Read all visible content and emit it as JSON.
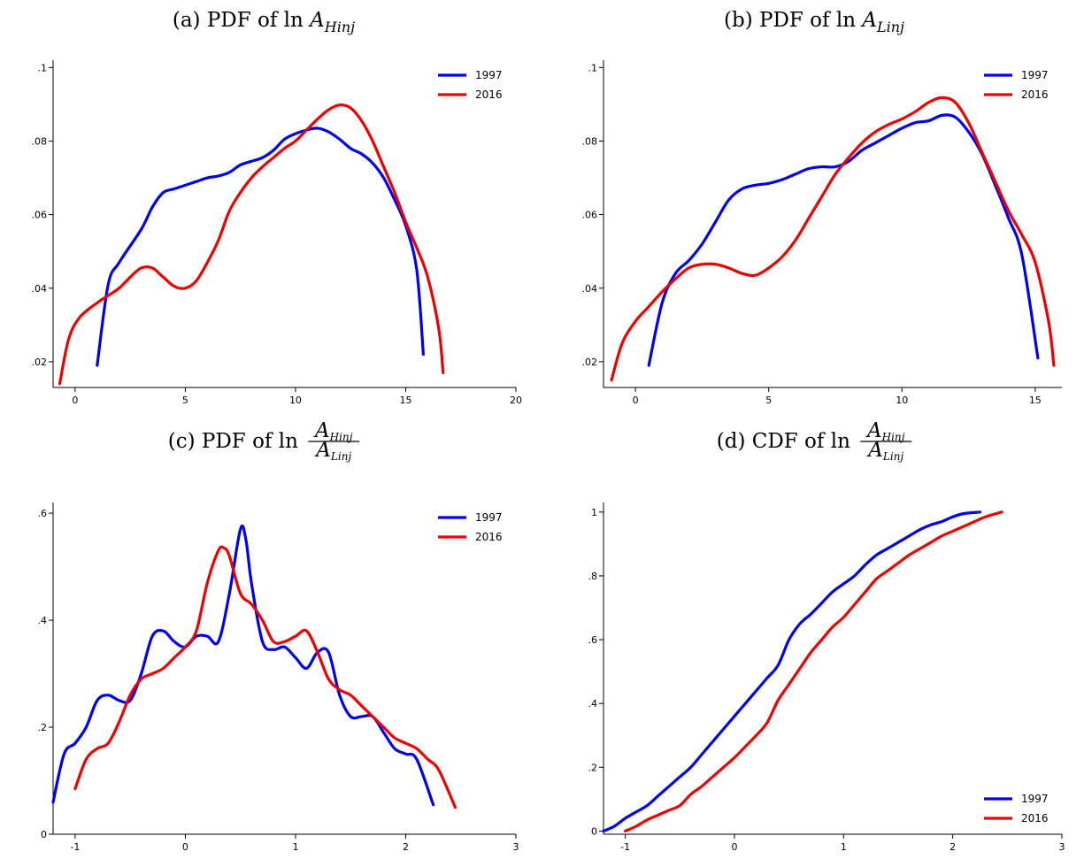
{
  "figure": {
    "panels": [
      {
        "title_prefix": "(a) PDF of ln ",
        "title_var": "A",
        "title_sub": "Hinj"
      },
      {
        "title_prefix": "(b) PDF of ln ",
        "title_var": "A",
        "title_sub": "Linj"
      },
      {
        "title_prefix": "(c) PDF of ln ",
        "title_num": "A",
        "title_num_sub": "Hinj",
        "title_den": "A",
        "title_den_sub": "Linj"
      },
      {
        "title_prefix": "(d) CDF of ln ",
        "title_num": "A",
        "title_num_sub": "Hinj",
        "title_den": "A",
        "title_den_sub": "Linj"
      }
    ]
  },
  "colors": {
    "series_1997": "#0000ee",
    "series_2016": "#ee0000",
    "axis": "#000000"
  },
  "chart_data": [
    {
      "type": "line",
      "title": "(a) PDF of ln A_Hinj",
      "xlim": [
        -1,
        20
      ],
      "ylim": [
        0.013,
        0.102
      ],
      "xticks": [
        0,
        5,
        10,
        15,
        20
      ],
      "xtick_labels": [
        "0",
        "5",
        "10",
        "15",
        "20"
      ],
      "yticks": [
        0.02,
        0.04,
        0.06,
        0.08,
        0.1
      ],
      "ytick_labels": [
        ".02",
        ".04",
        ".06",
        ".08",
        ".1"
      ],
      "legend": "top-right",
      "series": [
        {
          "name": "1997",
          "x": [
            1,
            1.5,
            2,
            3,
            3.5,
            4,
            4.5,
            5,
            5.5,
            6,
            6.5,
            7,
            7.5,
            8,
            8.5,
            9,
            9.5,
            10,
            10.5,
            11,
            11.5,
            12,
            12.5,
            13,
            13.5,
            14,
            14.5,
            15,
            15.5,
            15.8
          ],
          "y": [
            0.019,
            0.041,
            0.047,
            0.056,
            0.062,
            0.066,
            0.067,
            0.068,
            0.069,
            0.07,
            0.0705,
            0.0715,
            0.0735,
            0.0745,
            0.0755,
            0.0775,
            0.0805,
            0.082,
            0.083,
            0.0835,
            0.0825,
            0.0805,
            0.078,
            0.0765,
            0.074,
            0.07,
            0.064,
            0.057,
            0.045,
            0.022
          ]
        },
        {
          "name": "2016",
          "x": [
            -0.7,
            -0.3,
            0.2,
            1,
            1.5,
            2,
            2.5,
            3,
            3.5,
            4,
            4.5,
            5,
            5.5,
            6,
            6.5,
            7,
            7.5,
            8,
            8.5,
            9,
            9.5,
            10,
            10.5,
            11,
            11.5,
            12,
            12.5,
            13,
            13.5,
            14,
            14.5,
            15,
            15.5,
            16,
            16.5,
            16.7
          ],
          "y": [
            0.014,
            0.026,
            0.032,
            0.036,
            0.038,
            0.04,
            0.043,
            0.0455,
            0.0455,
            0.043,
            0.0405,
            0.04,
            0.042,
            0.047,
            0.053,
            0.061,
            0.066,
            0.07,
            0.073,
            0.0755,
            0.078,
            0.08,
            0.083,
            0.086,
            0.0885,
            0.0898,
            0.089,
            0.0855,
            0.08,
            0.073,
            0.066,
            0.058,
            0.051,
            0.043,
            0.029,
            0.017
          ]
        }
      ]
    },
    {
      "type": "line",
      "title": "(b) PDF of ln A_Linj",
      "xlim": [
        -1.2,
        16
      ],
      "ylim": [
        0.013,
        0.102
      ],
      "xticks": [
        0,
        5,
        10,
        15
      ],
      "xtick_labels": [
        "0",
        "5",
        "10",
        "15"
      ],
      "yticks": [
        0.02,
        0.04,
        0.06,
        0.08,
        0.1
      ],
      "ytick_labels": [
        ".02",
        ".04",
        ".06",
        ".08",
        ".1"
      ],
      "legend": "top-right",
      "series": [
        {
          "name": "1997",
          "x": [
            0.5,
            1,
            1.5,
            2,
            2.5,
            3,
            3.5,
            4,
            4.5,
            5,
            5.5,
            6,
            6.5,
            7,
            7.5,
            8,
            8.5,
            9,
            9.5,
            10,
            10.5,
            11,
            11.5,
            12,
            12.5,
            13,
            13.5,
            14,
            14.5,
            15.1
          ],
          "y": [
            0.019,
            0.036,
            0.044,
            0.0475,
            0.052,
            0.058,
            0.064,
            0.067,
            0.068,
            0.0685,
            0.0695,
            0.071,
            0.0725,
            0.073,
            0.073,
            0.0745,
            0.0775,
            0.0795,
            0.0815,
            0.0835,
            0.085,
            0.0855,
            0.087,
            0.0865,
            0.0825,
            0.0765,
            0.068,
            0.059,
            0.049,
            0.021
          ]
        },
        {
          "name": "2016",
          "x": [
            -0.9,
            -0.5,
            0,
            0.5,
            1,
            1.5,
            2,
            2.5,
            3,
            3.5,
            4,
            4.5,
            5,
            5.5,
            6,
            6.5,
            7,
            7.5,
            8,
            8.5,
            9,
            9.5,
            10,
            10.5,
            11,
            11.5,
            12,
            12.5,
            13,
            13.5,
            14,
            14.5,
            15,
            15.5,
            15.7
          ],
          "y": [
            0.015,
            0.025,
            0.031,
            0.035,
            0.039,
            0.0425,
            0.0455,
            0.0465,
            0.0465,
            0.0455,
            0.044,
            0.0435,
            0.0455,
            0.0485,
            0.053,
            0.059,
            0.065,
            0.071,
            0.0755,
            0.0795,
            0.0825,
            0.0845,
            0.086,
            0.088,
            0.0905,
            0.0918,
            0.0905,
            0.085,
            0.077,
            0.069,
            0.061,
            0.0545,
            0.047,
            0.031,
            0.019
          ]
        }
      ]
    },
    {
      "type": "line",
      "title": "(c) PDF of ln A_Hinj / A_Linj",
      "xlim": [
        -1.2,
        3
      ],
      "ylim": [
        0,
        0.62
      ],
      "xticks": [
        -1,
        0,
        1,
        2,
        3
      ],
      "xtick_labels": [
        "-1",
        "0",
        "1",
        "2",
        "3"
      ],
      "yticks": [
        0,
        0.2,
        0.4,
        0.6
      ],
      "ytick_labels": [
        "0",
        ".2",
        ".4",
        ".6"
      ],
      "legend": "top-right",
      "series": [
        {
          "name": "1997",
          "x": [
            -1.2,
            -1.1,
            -1.0,
            -0.9,
            -0.8,
            -0.7,
            -0.6,
            -0.5,
            -0.4,
            -0.3,
            -0.2,
            -0.1,
            0,
            0.1,
            0.2,
            0.3,
            0.4,
            0.5,
            0.55,
            0.6,
            0.7,
            0.8,
            0.9,
            1.0,
            1.1,
            1.2,
            1.3,
            1.4,
            1.5,
            1.6,
            1.7,
            1.8,
            1.9,
            2.0,
            2.1,
            2.25
          ],
          "y": [
            0.06,
            0.15,
            0.17,
            0.2,
            0.25,
            0.26,
            0.25,
            0.25,
            0.3,
            0.37,
            0.38,
            0.36,
            0.35,
            0.37,
            0.37,
            0.36,
            0.45,
            0.57,
            0.55,
            0.47,
            0.36,
            0.345,
            0.35,
            0.33,
            0.31,
            0.34,
            0.34,
            0.26,
            0.22,
            0.22,
            0.22,
            0.19,
            0.16,
            0.15,
            0.14,
            0.055
          ]
        },
        {
          "name": "2016",
          "x": [
            -1.0,
            -0.9,
            -0.8,
            -0.7,
            -0.6,
            -0.5,
            -0.4,
            -0.3,
            -0.2,
            -0.1,
            0,
            0.1,
            0.2,
            0.3,
            0.35,
            0.4,
            0.5,
            0.6,
            0.7,
            0.8,
            0.9,
            1.0,
            1.1,
            1.2,
            1.3,
            1.4,
            1.5,
            1.6,
            1.7,
            1.8,
            1.9,
            2.0,
            2.1,
            2.2,
            2.3,
            2.45
          ],
          "y": [
            0.085,
            0.14,
            0.16,
            0.17,
            0.21,
            0.26,
            0.29,
            0.3,
            0.31,
            0.33,
            0.35,
            0.38,
            0.47,
            0.53,
            0.535,
            0.52,
            0.45,
            0.43,
            0.4,
            0.36,
            0.36,
            0.37,
            0.38,
            0.34,
            0.29,
            0.27,
            0.26,
            0.24,
            0.22,
            0.2,
            0.18,
            0.17,
            0.16,
            0.14,
            0.12,
            0.05
          ]
        }
      ]
    },
    {
      "type": "line",
      "title": "(d) CDF of ln A_Hinj / A_Linj",
      "xlim": [
        -1.2,
        3
      ],
      "ylim": [
        -0.01,
        1.03
      ],
      "xticks": [
        -1,
        0,
        1,
        2,
        3
      ],
      "xtick_labels": [
        "-1",
        "0",
        "1",
        "2",
        "3"
      ],
      "yticks": [
        0,
        0.2,
        0.4,
        0.6,
        0.8,
        1
      ],
      "ytick_labels": [
        "0",
        ".2",
        ".4",
        ".6",
        ".8",
        "1"
      ],
      "legend": "bottom-right",
      "series": [
        {
          "name": "1997",
          "x": [
            -1.2,
            -1.1,
            -1.0,
            -0.9,
            -0.8,
            -0.7,
            -0.6,
            -0.5,
            -0.4,
            -0.3,
            -0.2,
            -0.1,
            0,
            0.1,
            0.2,
            0.3,
            0.4,
            0.5,
            0.6,
            0.7,
            0.8,
            0.9,
            1.0,
            1.1,
            1.2,
            1.3,
            1.4,
            1.5,
            1.6,
            1.7,
            1.8,
            1.9,
            2.0,
            2.1,
            2.25
          ],
          "y": [
            0,
            0.015,
            0.04,
            0.06,
            0.08,
            0.11,
            0.14,
            0.17,
            0.2,
            0.24,
            0.28,
            0.32,
            0.36,
            0.4,
            0.44,
            0.48,
            0.52,
            0.6,
            0.65,
            0.68,
            0.715,
            0.75,
            0.775,
            0.8,
            0.835,
            0.865,
            0.885,
            0.905,
            0.925,
            0.945,
            0.96,
            0.97,
            0.985,
            0.995,
            1.0
          ]
        },
        {
          "name": "2016",
          "x": [
            -1.0,
            -0.9,
            -0.8,
            -0.7,
            -0.6,
            -0.5,
            -0.4,
            -0.3,
            -0.2,
            -0.1,
            0,
            0.1,
            0.2,
            0.3,
            0.4,
            0.5,
            0.6,
            0.7,
            0.8,
            0.9,
            1.0,
            1.1,
            1.2,
            1.3,
            1.4,
            1.5,
            1.6,
            1.7,
            1.8,
            1.9,
            2.0,
            2.1,
            2.2,
            2.3,
            2.45
          ],
          "y": [
            0,
            0.015,
            0.035,
            0.05,
            0.065,
            0.08,
            0.115,
            0.14,
            0.17,
            0.2,
            0.23,
            0.265,
            0.3,
            0.34,
            0.41,
            0.46,
            0.51,
            0.56,
            0.6,
            0.64,
            0.67,
            0.71,
            0.75,
            0.79,
            0.815,
            0.84,
            0.865,
            0.885,
            0.905,
            0.925,
            0.94,
            0.955,
            0.97,
            0.985,
            1.0
          ]
        }
      ]
    }
  ]
}
